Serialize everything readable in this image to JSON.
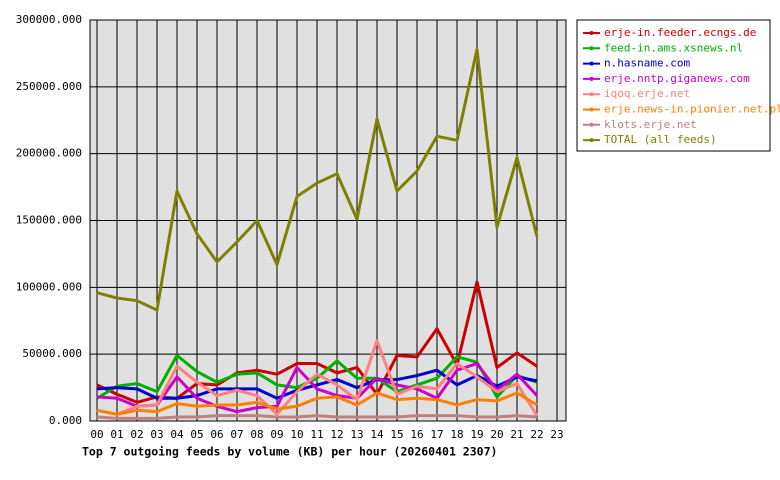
{
  "chart_data": {
    "type": "line",
    "title": "Top 7 outgoing feeds by volume (KB) per hour (20260401 2307)",
    "categories": [
      "00",
      "01",
      "02",
      "03",
      "04",
      "05",
      "06",
      "07",
      "08",
      "09",
      "10",
      "11",
      "12",
      "13",
      "14",
      "15",
      "16",
      "17",
      "18",
      "19",
      "20",
      "21",
      "22",
      "23"
    ],
    "ylim": [
      0,
      300000
    ],
    "yticks": [
      {
        "value": 0,
        "label": "0.000"
      },
      {
        "value": 50000,
        "label": "50000.000"
      },
      {
        "value": 100000,
        "label": "100000.000"
      },
      {
        "value": 150000,
        "label": "150000.000"
      },
      {
        "value": 200000,
        "label": "200000.000"
      },
      {
        "value": 250000,
        "label": "250000.000"
      },
      {
        "value": 300000,
        "label": "300000.000"
      }
    ],
    "grid": true,
    "legend": "right",
    "series": [
      {
        "name": "erje-in.feeder.ecngs.de",
        "color": "#cc0000",
        "values": [
          27000,
          20000,
          14000,
          18000,
          17000,
          28000,
          27000,
          36000,
          38000,
          35000,
          43000,
          43000,
          36000,
          40000,
          20000,
          49000,
          48000,
          69000,
          42000,
          104000,
          40000,
          51000,
          41000,
          null
        ]
      },
      {
        "name": "feed-in.ams.xsnews.nl",
        "color": "#00b000",
        "values": [
          17000,
          26000,
          28000,
          22000,
          49000,
          37000,
          29000,
          35000,
          36000,
          27000,
          25000,
          32000,
          45000,
          32000,
          32000,
          22000,
          27000,
          32000,
          48000,
          44000,
          18000,
          34000,
          29000,
          null
        ]
      },
      {
        "name": "n.hasname.com",
        "color": "#0000cc",
        "values": [
          24000,
          25000,
          24000,
          17000,
          17000,
          19000,
          24000,
          24000,
          24000,
          17000,
          23000,
          27000,
          31000,
          25000,
          31000,
          31000,
          34000,
          38000,
          27000,
          34000,
          26000,
          33000,
          30000,
          null
        ]
      },
      {
        "name": "erje.nntp.giganews.com",
        "color": "#cc00cc",
        "values": [
          18000,
          17000,
          11000,
          12000,
          33000,
          17000,
          11000,
          7000,
          10000,
          11000,
          40000,
          24000,
          19000,
          17000,
          32000,
          27000,
          24000,
          17000,
          38000,
          43000,
          23000,
          35000,
          19000,
          null
        ]
      },
      {
        "name": "iqoq.erje.net",
        "color": "#ff8080",
        "values": [
          8000,
          5000,
          11000,
          12000,
          41000,
          29000,
          19000,
          23000,
          19000,
          5000,
          22000,
          35000,
          27000,
          16000,
          60000,
          20000,
          26000,
          24000,
          43000,
          33000,
          22000,
          28000,
          4000,
          null
        ]
      },
      {
        "name": "erje.news-in.pionier.net.pl",
        "color": "#ff8000",
        "values": [
          8000,
          5000,
          8000,
          7000,
          13000,
          11000,
          12000,
          12000,
          14000,
          9000,
          11000,
          17000,
          18000,
          12000,
          21000,
          16000,
          17000,
          16000,
          12000,
          16000,
          15000,
          21000,
          12000,
          null
        ]
      },
      {
        "name": "klots.erje.net",
        "color": "#c08080",
        "values": [
          3000,
          2000,
          2000,
          2000,
          3000,
          3000,
          4000,
          4000,
          4000,
          3000,
          3000,
          4000,
          3000,
          3000,
          3000,
          3000,
          4000,
          4000,
          4000,
          3000,
          3000,
          4000,
          3000,
          null
        ]
      },
      {
        "name": "TOTAL (all feeds)",
        "color": "#808000",
        "values": [
          96000,
          92000,
          90000,
          83000,
          172000,
          140000,
          119000,
          134000,
          150000,
          117000,
          168000,
          178000,
          185000,
          151000,
          226000,
          172000,
          187000,
          213000,
          210000,
          278000,
          145000,
          197000,
          138000,
          null
        ]
      }
    ]
  }
}
